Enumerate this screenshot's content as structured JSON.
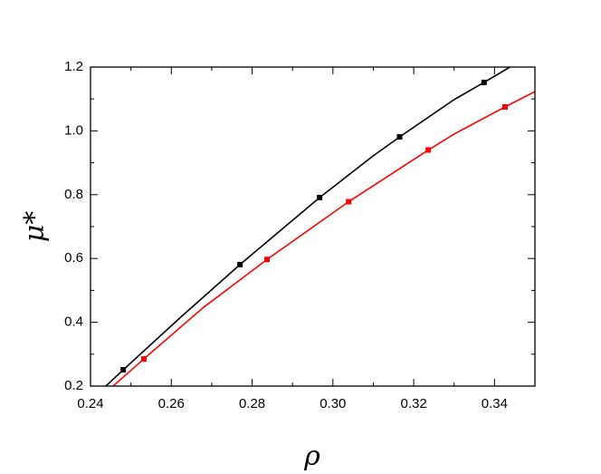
{
  "chart_data": {
    "type": "line",
    "x_label": "ρ",
    "y_label": "μ*",
    "xlim": [
      0.24,
      0.35
    ],
    "ylim": [
      0.2,
      1.2
    ],
    "xticks": [
      0.24,
      0.26,
      0.28,
      {
        "value": 0.3,
        "label": "0.30"
      },
      0.32,
      0.34
    ],
    "yticks": [
      0.2,
      0.4,
      0.6,
      0.8,
      {
        "value": 1,
        "label": "1.0"
      },
      1.2
    ],
    "xminorticks": [
      0.25,
      0.27,
      0.29,
      0.31,
      0.33,
      0.35
    ],
    "yminorticks": [
      0.3,
      0.5,
      0.7,
      0.9,
      1.1
    ],
    "series": [
      {
        "color": "#000000",
        "x": [
          0.2438,
          0.2481,
          0.2625,
          0.277,
          0.2967,
          0.31,
          0.3165,
          0.33,
          0.3374,
          0.3438
        ],
        "values": [
          0.2,
          0.251,
          0.418,
          0.581,
          0.791,
          0.922,
          0.981,
          1.098,
          1.152,
          1.2
        ],
        "marker_x": [
          0.2481,
          0.277,
          0.2967,
          0.3165,
          0.3374
        ],
        "marker_values": [
          0.251,
          0.581,
          0.791,
          0.981,
          1.152
        ]
      },
      {
        "color": "#ff0000",
        "x": [
          0.2456,
          0.2532,
          0.268,
          0.2837,
          0.3039,
          0.31,
          0.3236,
          0.33,
          0.3426,
          0.35
        ],
        "values": [
          0.2,
          0.285,
          0.447,
          0.597,
          0.778,
          0.828,
          0.94,
          0.99,
          1.075,
          1.123
        ],
        "marker_x": [
          0.2532,
          0.2837,
          0.3039,
          0.3236,
          0.3426
        ],
        "marker_values": [
          0.285,
          0.597,
          0.778,
          0.94,
          1.075
        ]
      }
    ]
  }
}
